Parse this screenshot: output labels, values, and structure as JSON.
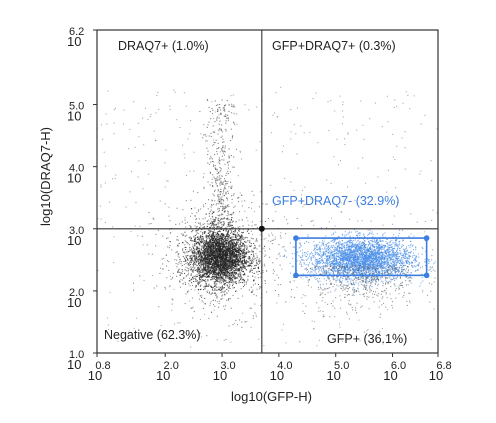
{
  "chart_data": {
    "type": "scatter",
    "x_label": "log10(GFP-H)",
    "y_label": "log10(DRAQ7-H)",
    "x_range": [
      0.8,
      6.8
    ],
    "y_range": [
      1.0,
      6.2
    ],
    "x_ticks": [
      {
        "base": "10",
        "exp": "0.8",
        "value": 0.8
      },
      {
        "base": "10",
        "exp": "2.0",
        "value": 2.0
      },
      {
        "base": "10",
        "exp": "3.0",
        "value": 3.0
      },
      {
        "base": "10",
        "exp": "4.0",
        "value": 4.0
      },
      {
        "base": "10",
        "exp": "5.0",
        "value": 5.0
      },
      {
        "base": "10",
        "exp": "6.0",
        "value": 6.0
      },
      {
        "base": "10",
        "exp": "6.8",
        "value": 6.8
      }
    ],
    "y_ticks": [
      {
        "base": "10",
        "exp": "1.0",
        "value": 1.0
      },
      {
        "base": "10",
        "exp": "2.0",
        "value": 2.0
      },
      {
        "base": "10",
        "exp": "3.0",
        "value": 3.0
      },
      {
        "base": "10",
        "exp": "4.0",
        "value": 4.0
      },
      {
        "base": "10",
        "exp": "5.0",
        "value": 5.0
      },
      {
        "base": "10",
        "exp": "6.2",
        "value": 6.2
      }
    ],
    "quadrant_divider": {
      "x": 3.7,
      "y": 3.0
    },
    "quadrants": [
      {
        "label": "DRAQ7+  (1.0%)",
        "position": "top-left",
        "percent": 1.0
      },
      {
        "label": "GFP+DRAQ7+  (0.3%)",
        "position": "top-right",
        "percent": 0.3
      },
      {
        "label": "Negative  (62.3%)",
        "position": "bottom-left",
        "percent": 62.3
      },
      {
        "label": "GFP+  (36.1%)",
        "position": "bottom-right",
        "percent": 36.1
      }
    ],
    "gate": {
      "label": "GFP+DRAQ7-  (32.9%)",
      "percent": 32.9,
      "x_range": [
        4.3,
        6.6
      ],
      "y_range": [
        2.25,
        2.85
      ],
      "color": "#3b7de0"
    },
    "populations": [
      {
        "name": "negative",
        "center": [
          2.95,
          2.55
        ],
        "spread": [
          0.25,
          0.22
        ],
        "color": "#222222"
      },
      {
        "name": "gfp_positive",
        "center": [
          5.45,
          2.52
        ],
        "spread": [
          0.45,
          0.17
        ],
        "color": "#4a8fe8"
      }
    ],
    "grid": false,
    "point_color": "#333333"
  }
}
